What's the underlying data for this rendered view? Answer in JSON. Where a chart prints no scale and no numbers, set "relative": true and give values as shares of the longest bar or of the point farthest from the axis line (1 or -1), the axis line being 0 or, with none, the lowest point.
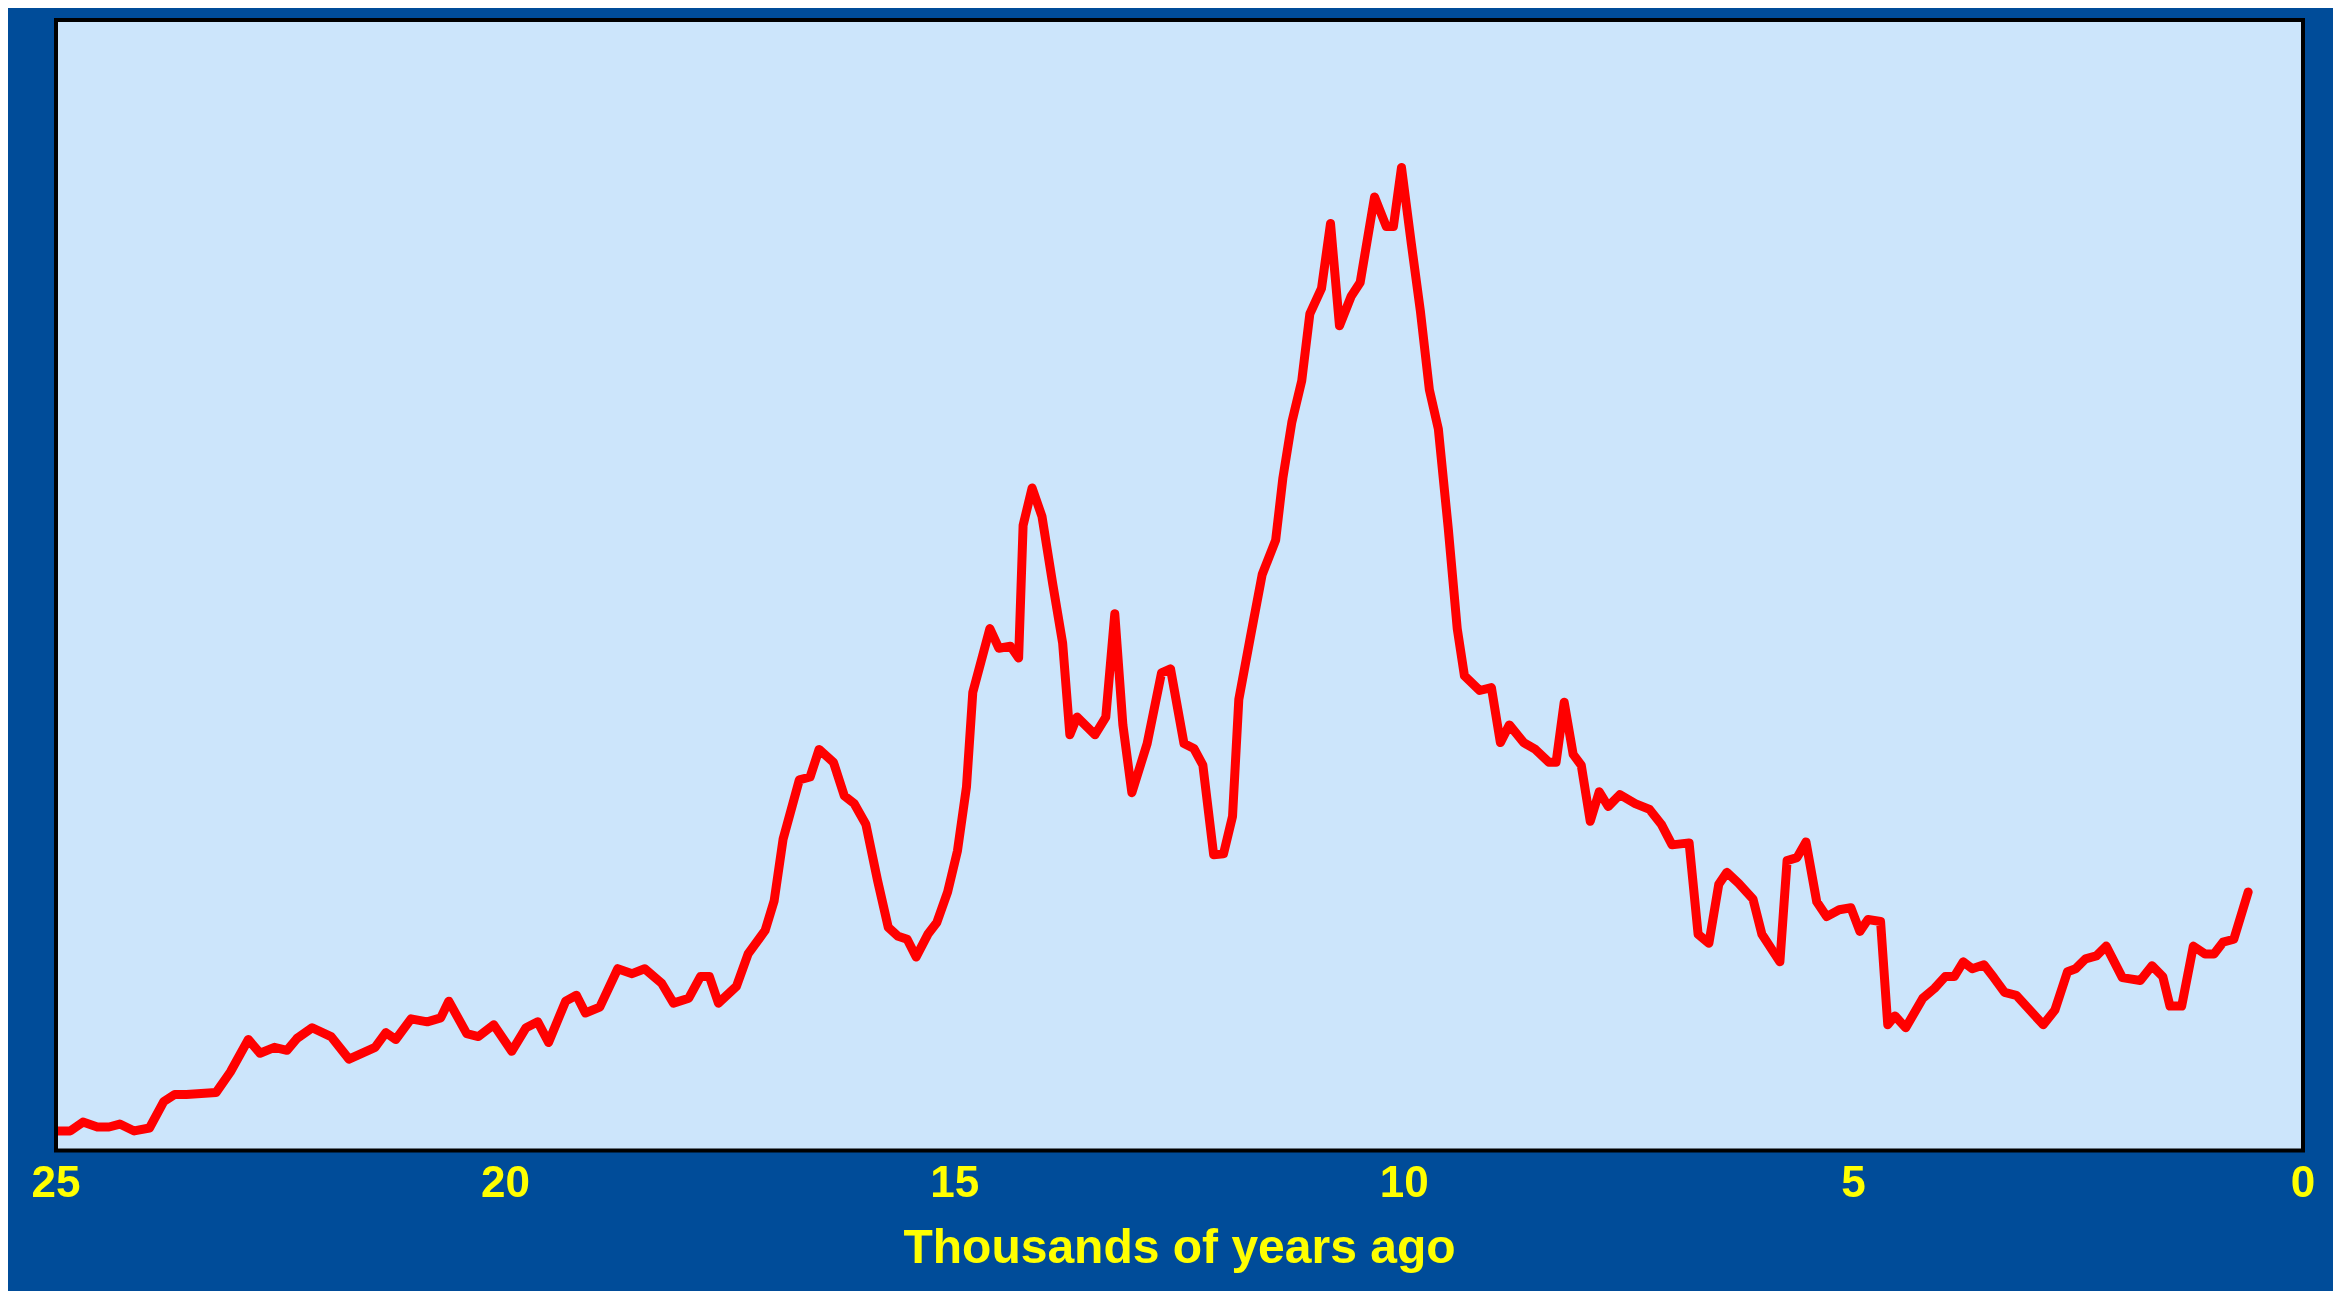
{
  "chart_data": {
    "type": "line",
    "relative": true,
    "xlabel": "Thousands of years ago",
    "xlim": [
      25,
      0
    ],
    "xticks": [
      25,
      20,
      15,
      10,
      5,
      0
    ],
    "grid": false,
    "legend": false,
    "marker": "none",
    "line_style": "solid",
    "series": [
      {
        "color": "#ff0000",
        "x": [
          25.0,
          24.84,
          24.7,
          24.54,
          24.41,
          24.29,
          24.13,
          23.96,
          23.8,
          23.68,
          23.55,
          23.22,
          23.06,
          22.86,
          22.73,
          22.57,
          22.43,
          22.32,
          22.15,
          21.94,
          21.74,
          21.45,
          21.33,
          21.22,
          21.05,
          20.87,
          20.72,
          20.63,
          20.43,
          20.3,
          20.13,
          19.93,
          19.77,
          19.64,
          19.52,
          19.33,
          19.21,
          19.11,
          18.95,
          18.75,
          18.59,
          18.45,
          18.26,
          18.13,
          17.96,
          17.83,
          17.73,
          17.63,
          17.43,
          17.3,
          17.11,
          17.01,
          16.91,
          16.73,
          16.61,
          16.51,
          16.35,
          16.23,
          16.12,
          15.99,
          15.86,
          15.74,
          15.63,
          15.53,
          15.43,
          15.3,
          15.2,
          15.08,
          14.97,
          14.87,
          14.8,
          14.61,
          14.51,
          14.38,
          14.29,
          14.24,
          14.14,
          14.03,
          13.91,
          13.8,
          13.72,
          13.64,
          13.44,
          13.32,
          13.22,
          13.13,
          13.03,
          12.86,
          12.7,
          12.6,
          12.45,
          12.34,
          12.24,
          12.12,
          12.01,
          11.91,
          11.84,
          11.71,
          11.58,
          11.43,
          11.35,
          11.25,
          11.14,
          11.05,
          10.92,
          10.82,
          10.72,
          10.59,
          10.49,
          10.33,
          10.2,
          10.12,
          10.03,
          9.92,
          9.82,
          9.72,
          9.62,
          9.51,
          9.41,
          9.33,
          9.16,
          9.03,
          8.93,
          8.83,
          8.67,
          8.54,
          8.39,
          8.31,
          8.22,
          8.12,
          8.03,
          7.93,
          7.83,
          7.73,
          7.6,
          7.43,
          7.27,
          7.14,
          7.02,
          6.83,
          6.73,
          6.61,
          6.5,
          6.41,
          6.28,
          6.12,
          6.02,
          5.82,
          5.74,
          5.63,
          5.53,
          5.41,
          5.3,
          5.16,
          5.03,
          4.93,
          4.84,
          4.7,
          4.62,
          4.54,
          4.42,
          4.23,
          4.1,
          3.98,
          3.88,
          3.78,
          3.68,
          3.55,
          3.44,
          3.32,
          3.19,
          3.04,
          2.89,
          2.76,
          2.62,
          2.53,
          2.42,
          2.3,
          2.19,
          2.01,
          1.81,
          1.68,
          1.56,
          1.48,
          1.35,
          1.22,
          1.09,
          0.99,
          0.89,
          0.77,
          0.61
        ],
        "values": [
          0.02,
          0.02,
          0.029,
          0.024,
          0.024,
          0.027,
          0.02,
          0.023,
          0.05,
          0.057,
          0.057,
          0.059,
          0.08,
          0.113,
          0.099,
          0.105,
          0.102,
          0.114,
          0.125,
          0.116,
          0.093,
          0.105,
          0.12,
          0.113,
          0.134,
          0.131,
          0.135,
          0.152,
          0.119,
          0.116,
          0.128,
          0.101,
          0.125,
          0.131,
          0.11,
          0.152,
          0.158,
          0.14,
          0.146,
          0.185,
          0.18,
          0.185,
          0.17,
          0.15,
          0.155,
          0.177,
          0.177,
          0.15,
          0.167,
          0.2,
          0.224,
          0.254,
          0.317,
          0.377,
          0.38,
          0.408,
          0.395,
          0.361,
          0.353,
          0.332,
          0.275,
          0.227,
          0.218,
          0.215,
          0.197,
          0.22,
          0.232,
          0.263,
          0.305,
          0.37,
          0.466,
          0.531,
          0.511,
          0.513,
          0.501,
          0.636,
          0.674,
          0.645,
          0.576,
          0.516,
          0.423,
          0.441,
          0.423,
          0.441,
          0.546,
          0.433,
          0.364,
          0.414,
          0.486,
          0.49,
          0.414,
          0.409,
          0.392,
          0.301,
          0.302,
          0.34,
          0.459,
          0.523,
          0.586,
          0.621,
          0.684,
          0.741,
          0.783,
          0.851,
          0.877,
          0.943,
          0.839,
          0.869,
          0.883,
          0.97,
          0.94,
          0.94,
          1.0,
          0.922,
          0.854,
          0.774,
          0.734,
          0.633,
          0.531,
          0.483,
          0.468,
          0.471,
          0.415,
          0.433,
          0.415,
          0.408,
          0.395,
          0.395,
          0.456,
          0.403,
          0.392,
          0.335,
          0.365,
          0.35,
          0.362,
          0.353,
          0.347,
          0.332,
          0.311,
          0.313,
          0.22,
          0.211,
          0.271,
          0.283,
          0.272,
          0.256,
          0.22,
          0.192,
          0.295,
          0.298,
          0.314,
          0.253,
          0.238,
          0.245,
          0.247,
          0.223,
          0.235,
          0.233,
          0.128,
          0.137,
          0.125,
          0.155,
          0.165,
          0.177,
          0.177,
          0.192,
          0.185,
          0.189,
          0.176,
          0.161,
          0.158,
          0.143,
          0.128,
          0.143,
          0.182,
          0.185,
          0.195,
          0.198,
          0.208,
          0.176,
          0.173,
          0.188,
          0.177,
          0.147,
          0.147,
          0.208,
          0.2,
          0.2,
          0.212,
          0.215,
          0.263
        ]
      }
    ]
  }
}
